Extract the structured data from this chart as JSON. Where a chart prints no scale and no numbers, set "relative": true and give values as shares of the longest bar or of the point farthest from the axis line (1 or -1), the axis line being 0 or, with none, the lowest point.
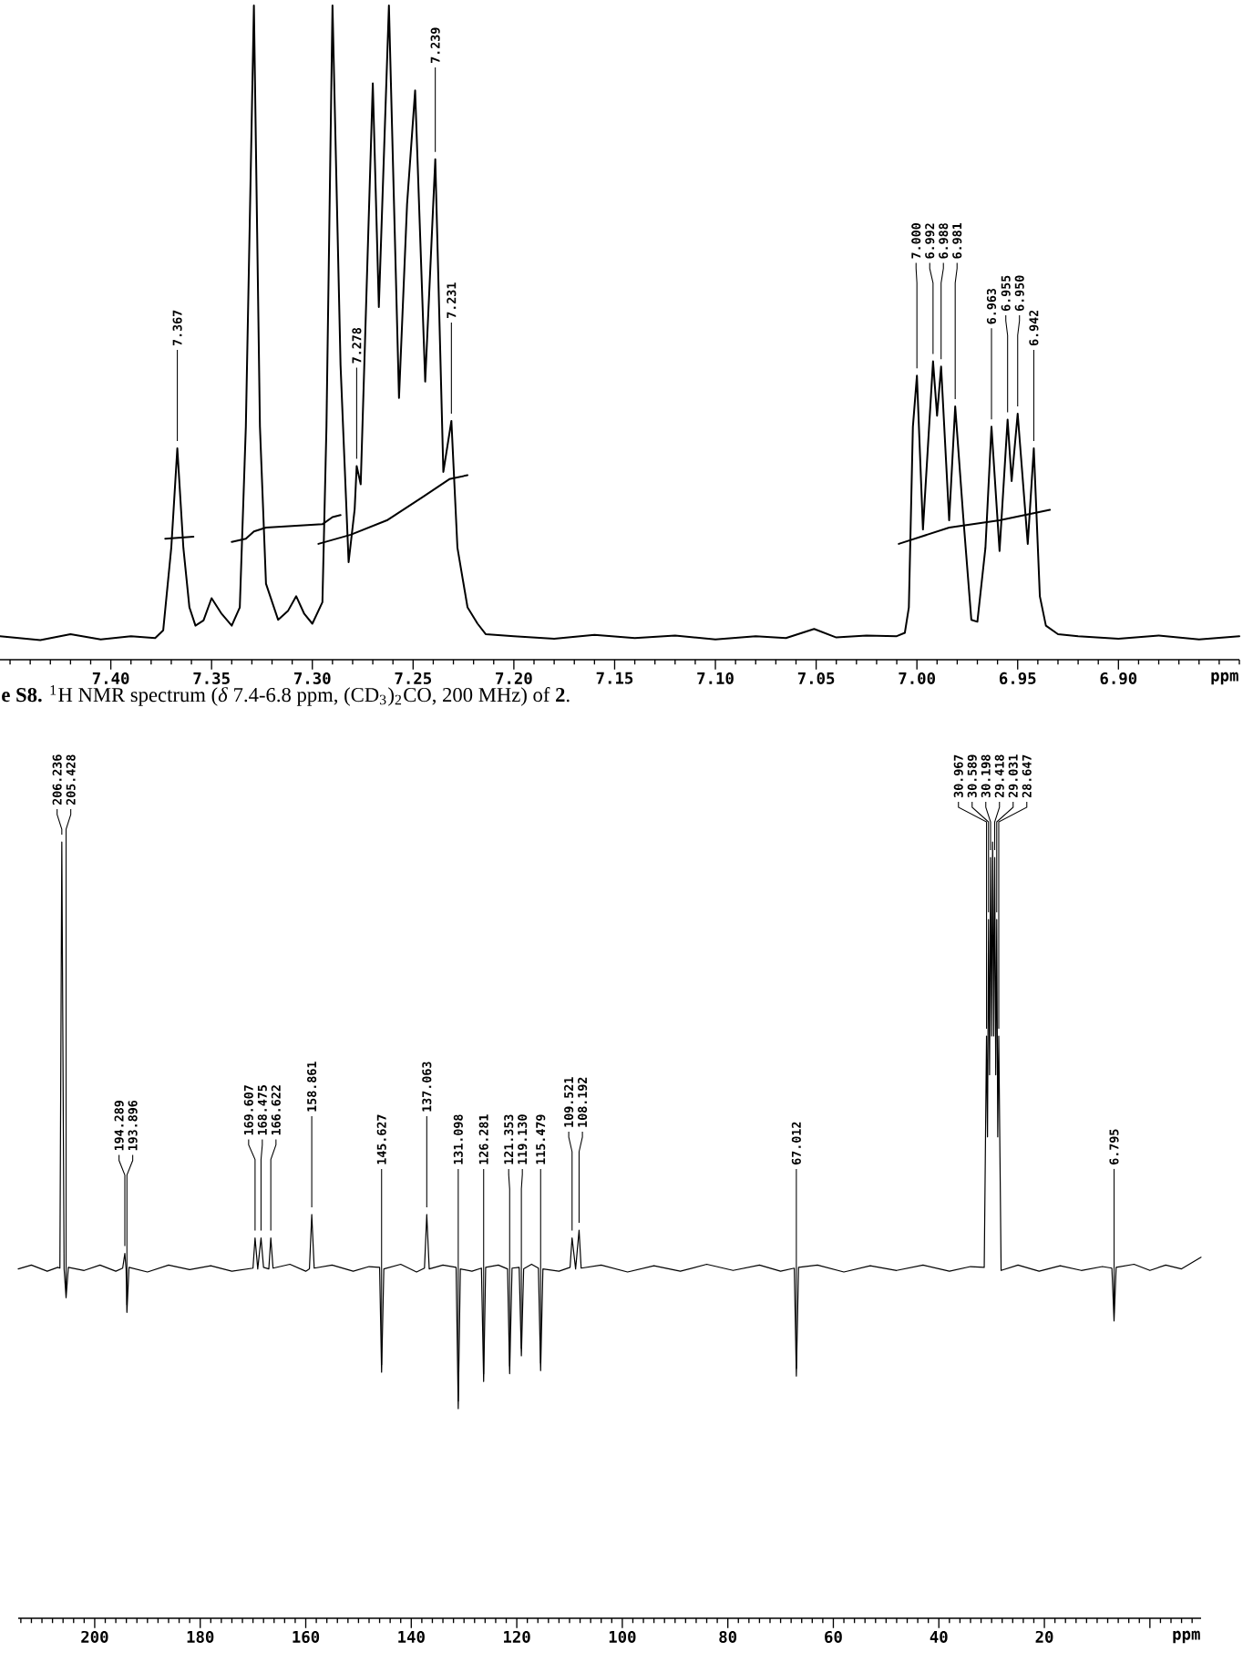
{
  "chart_data": [
    {
      "type": "line",
      "relative": true,
      "xlabel": "ppm",
      "xlim": [
        7.455,
        6.84
      ],
      "xticks": [
        {
          "value": 7.4,
          "label": "7.40"
        },
        7.35,
        {
          "value": 7.3,
          "label": "7.30"
        },
        7.25,
        {
          "value": 7.2,
          "label": "7.20"
        },
        7.15,
        {
          "value": 7.1,
          "label": "7.10"
        },
        7.05,
        {
          "value": 7.0,
          "label": "7.00"
        },
        6.95,
        {
          "value": 6.9,
          "label": "6.90"
        }
      ],
      "series": [
        {
          "color": "#000000",
          "x": [
            7.455,
            7.435,
            7.42,
            7.405,
            7.39,
            7.378,
            7.374,
            7.37,
            7.367,
            7.364,
            7.361,
            7.358,
            7.354,
            7.35,
            7.345,
            7.34,
            7.336,
            7.333,
            7.329,
            7.326,
            7.323,
            7.317,
            7.312,
            7.308,
            7.304,
            7.3,
            7.295,
            7.293,
            7.29,
            7.286,
            7.282,
            7.279,
            7.278,
            7.276,
            7.27,
            7.267,
            7.262,
            7.257,
            7.253,
            7.249,
            7.244,
            7.239,
            7.235,
            7.231,
            7.228,
            7.223,
            7.218,
            7.214,
            7.2,
            7.18,
            7.16,
            7.14,
            7.12,
            7.1,
            7.08,
            7.065,
            7.051,
            7.04,
            7.025,
            7.01,
            7.006,
            7.004,
            7.002,
            7.0,
            6.997,
            6.992,
            6.99,
            6.988,
            6.984,
            6.981,
            6.977,
            6.973,
            6.97,
            6.966,
            6.963,
            6.959,
            6.955,
            6.953,
            6.95,
            6.945,
            6.942,
            6.939,
            6.936,
            6.93,
            6.92,
            6.9,
            6.88,
            6.86,
            6.84
          ],
          "values": [
            0.036,
            0.03,
            0.039,
            0.031,
            0.036,
            0.033,
            0.045,
            0.171,
            0.323,
            0.171,
            0.08,
            0.052,
            0.06,
            0.094,
            0.07,
            0.052,
            0.08,
            0.356,
            1.0,
            0.356,
            0.116,
            0.061,
            0.075,
            0.097,
            0.07,
            0.055,
            0.088,
            0.356,
            1.0,
            0.45,
            0.149,
            0.23,
            0.296,
            0.268,
            0.881,
            0.539,
            1.0,
            0.4,
            0.696,
            0.87,
            0.425,
            0.765,
            0.287,
            0.365,
            0.171,
            0.08,
            0.055,
            0.039,
            0.036,
            0.032,
            0.038,
            0.033,
            0.037,
            0.031,
            0.036,
            0.033,
            0.047,
            0.034,
            0.037,
            0.036,
            0.041,
            0.08,
            0.356,
            0.434,
            0.199,
            0.456,
            0.373,
            0.448,
            0.213,
            0.387,
            0.218,
            0.061,
            0.058,
            0.171,
            0.356,
            0.166,
            0.367,
            0.273,
            0.376,
            0.177,
            0.323,
            0.097,
            0.052,
            0.039,
            0.036,
            0.032,
            0.037,
            0.031,
            0.036
          ]
        },
        {
          "color": "#000000",
          "x": [
            7.373,
            7.359,
            7.35,
            7.34,
            7.333,
            7.329,
            7.323,
            7.295,
            7.29,
            7.286,
            7.29,
            7.297,
            7.281,
            7.263,
            7.245,
            7.232,
            7.223,
            7.1,
            7.009,
            6.984,
            6.959,
            6.934
          ],
          "values": [
            0.185,
            0.188,
            null,
            0.18,
            0.185,
            0.196,
            0.202,
            0.207,
            0.218,
            0.221,
            null,
            0.177,
            0.191,
            0.213,
            0.249,
            0.276,
            0.282,
            null,
            0.177,
            0.202,
            0.213,
            0.229
          ]
        }
      ],
      "annotations": [
        {
          "text": "7.367",
          "x": 7.367,
          "y": 0.323
        },
        {
          "text": "7.278",
          "x": 7.278,
          "y": 0.296
        },
        {
          "text": "7.239",
          "x": 7.239,
          "y": 0.765
        },
        {
          "text": "7.231",
          "x": 7.231,
          "y": 0.365
        },
        {
          "text": "7.000",
          "x": 7.0,
          "y": 0.434
        },
        {
          "text": "6.992",
          "x": 6.992,
          "y": 0.456
        },
        {
          "text": "6.988",
          "x": 6.988,
          "y": 0.448
        },
        {
          "text": "6.981",
          "x": 6.981,
          "y": 0.387
        },
        {
          "text": "6.963",
          "x": 6.963,
          "y": 0.356
        },
        {
          "text": "6.955",
          "x": 6.955,
          "y": 0.367
        },
        {
          "text": "6.950",
          "x": 6.95,
          "y": 0.376
        },
        {
          "text": "6.942",
          "x": 6.942,
          "y": 0.323
        },
        "**e S8.** $^{1}$H NMR spectrum (*δ* 7.4-6.8 ppm, (CD$_{3}$)$_{2}$CO, 200 MHz) of **2**."
      ]
    },
    {
      "type": "line",
      "relative": true,
      "xlabel": "ppm",
      "xlim": [
        214.5,
        -9.7
      ],
      "xticks": [
        200,
        180,
        160,
        140,
        120,
        100,
        80,
        60,
        40,
        20,
        {
          "value": 0,
          "label": null
        }
      ],
      "series": [
        {
          "color": "#000000",
          "x": [
            214.5,
            212,
            209,
            207,
            206.6,
            206.236,
            205.8,
            205.428,
            205.0,
            202,
            199,
            196,
            194.7,
            194.289,
            194.05,
            193.896,
            193.5,
            190,
            186,
            182,
            178,
            174,
            170.0,
            169.607,
            169.1,
            168.475,
            168.0,
            167.0,
            166.622,
            166.2,
            163,
            160,
            159.3,
            158.861,
            158.4,
            155,
            151,
            148,
            146.0,
            145.627,
            145.2,
            142,
            139,
            137.5,
            137.063,
            136.6,
            134,
            131.5,
            131.098,
            130.7,
            128.5,
            126.7,
            126.281,
            125.9,
            123.5,
            121.75,
            121.353,
            120.9,
            119.55,
            119.13,
            118.7,
            117.2,
            115.9,
            115.479,
            115.05,
            112,
            109.9,
            109.521,
            108.85,
            108.192,
            107.8,
            104,
            99,
            94,
            89,
            84,
            79,
            74,
            70,
            67.4,
            67.012,
            66.6,
            63,
            58,
            53,
            48,
            43,
            38,
            34,
            31.4,
            30.967,
            30.78,
            30.589,
            30.39,
            30.198,
            30.0,
            29.808,
            29.61,
            29.418,
            29.22,
            29.031,
            28.84,
            28.647,
            28.2,
            25,
            21,
            17,
            13,
            9,
            7.2,
            6.795,
            6.4,
            3,
            0,
            -3,
            -6,
            -9.7
          ],
          "values": [
            0.45,
            0.455,
            0.447,
            0.452,
            0.451,
            1.0,
            0.45,
            0.413,
            0.452,
            0.448,
            0.455,
            0.447,
            0.451,
            0.47,
            0.45,
            0.394,
            0.452,
            0.446,
            0.455,
            0.449,
            0.454,
            0.447,
            0.451,
            0.49,
            0.45,
            0.49,
            0.452,
            0.45,
            0.49,
            0.451,
            0.456,
            0.447,
            0.45,
            0.52,
            0.451,
            0.455,
            0.447,
            0.453,
            0.452,
            0.317,
            0.45,
            0.456,
            0.446,
            0.451,
            0.52,
            0.45,
            0.455,
            0.452,
            0.27,
            0.45,
            0.447,
            0.451,
            0.305,
            0.452,
            0.455,
            0.45,
            0.315,
            0.451,
            0.452,
            0.338,
            0.45,
            0.456,
            0.451,
            0.319,
            0.45,
            0.447,
            0.452,
            0.49,
            0.45,
            0.5,
            0.451,
            0.455,
            0.446,
            0.454,
            0.447,
            0.456,
            0.448,
            0.455,
            0.447,
            0.451,
            0.312,
            0.452,
            0.455,
            0.446,
            0.454,
            0.448,
            0.455,
            0.447,
            0.453,
            0.452,
            0.75,
            0.62,
            0.9,
            0.7,
            0.98,
            0.75,
            1.0,
            0.75,
            0.98,
            0.7,
            0.9,
            0.62,
            0.75,
            0.448,
            0.455,
            0.447,
            0.454,
            0.448,
            0.453,
            0.451,
            0.383,
            0.452,
            0.456,
            0.448,
            0.455,
            0.45,
            0.465
          ]
        }
      ],
      "annotations": [
        {
          "text": "206.236",
          "x": 206.236,
          "y": 1.0
        },
        {
          "text": "205.428",
          "x": 205.428,
          "y": 0.413
        },
        {
          "text": "194.289",
          "x": 194.289,
          "y": 0.47
        },
        {
          "text": "193.896",
          "x": 193.896,
          "y": 0.394
        },
        {
          "text": "169.607",
          "x": 169.607,
          "y": 0.49
        },
        {
          "text": "168.475",
          "x": 168.475,
          "y": 0.49
        },
        {
          "text": "166.622",
          "x": 166.622,
          "y": 0.49
        },
        {
          "text": "158.861",
          "x": 158.861,
          "y": 0.52
        },
        {
          "text": "145.627",
          "x": 145.627,
          "y": 0.317
        },
        {
          "text": "137.063",
          "x": 137.063,
          "y": 0.52
        },
        {
          "text": "131.098",
          "x": 131.098,
          "y": 0.27
        },
        {
          "text": "126.281",
          "x": 126.281,
          "y": 0.305
        },
        {
          "text": "121.353",
          "x": 121.353,
          "y": 0.315
        },
        {
          "text": "119.130",
          "x": 119.13,
          "y": 0.338
        },
        {
          "text": "115.479",
          "x": 115.479,
          "y": 0.319
        },
        {
          "text": "109.521",
          "x": 109.521,
          "y": 0.49
        },
        {
          "text": "108.192",
          "x": 108.192,
          "y": 0.5
        },
        {
          "text": "67.012",
          "x": 67.012,
          "y": 0.312
        },
        {
          "text": "30.967",
          "x": 30.967,
          "y": 0.75
        },
        {
          "text": "30.589",
          "x": 30.589,
          "y": 0.9
        },
        {
          "text": "30.198",
          "x": 30.198,
          "y": 0.98
        },
        {
          "text": "29.418",
          "x": 29.418,
          "y": 0.98
        },
        {
          "text": "29.031",
          "x": 29.031,
          "y": 0.9
        },
        {
          "text": "28.647",
          "x": 28.647,
          "y": 0.75
        },
        {
          "text": "6.795",
          "x": 6.795,
          "y": 0.383
        }
      ]
    }
  ]
}
